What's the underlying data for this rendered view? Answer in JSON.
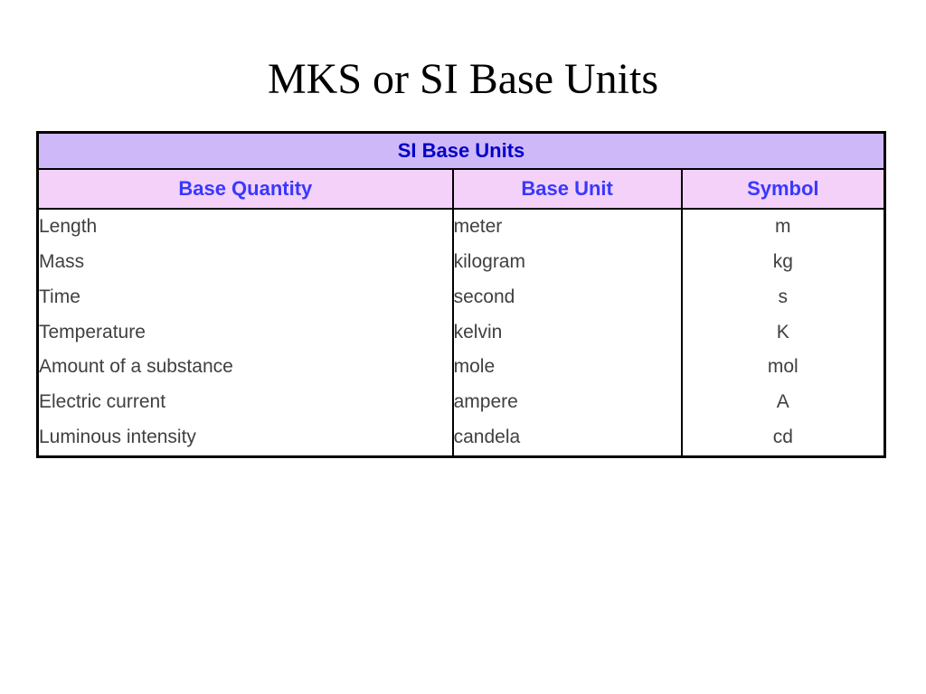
{
  "title": "MKS or SI Base Units",
  "table": {
    "caption": "SI Base Units",
    "headers": {
      "quantity": "Base Quantity",
      "unit": "Base Unit",
      "symbol": "Symbol"
    },
    "rows": [
      {
        "quantity": "Length",
        "unit": "meter",
        "symbol": "m"
      },
      {
        "quantity": "Mass",
        "unit": "kilogram",
        "symbol": "kg"
      },
      {
        "quantity": "Time",
        "unit": "second",
        "symbol": "s"
      },
      {
        "quantity": "Temperature",
        "unit": "kelvin",
        "symbol": "K"
      },
      {
        "quantity": "Amount of a substance",
        "unit": "mole",
        "symbol": "mol"
      },
      {
        "quantity": "Electric current",
        "unit": "ampere",
        "symbol": "A"
      },
      {
        "quantity": "Luminous intensity",
        "unit": "candela",
        "symbol": "cd"
      }
    ],
    "colors": {
      "caption_bg": "#cfb8f8",
      "header_bg": "#f3d1f9",
      "header_text": "#3838ff",
      "caption_text": "#0000c8",
      "body_text": "#404040",
      "border": "#000000",
      "background": "#ffffff"
    },
    "fonts": {
      "title_family": "Times New Roman",
      "title_size_pt": 36,
      "header_size_pt": 16,
      "body_size_pt": 16
    },
    "column_widths_pct": [
      49,
      27,
      24
    ]
  }
}
